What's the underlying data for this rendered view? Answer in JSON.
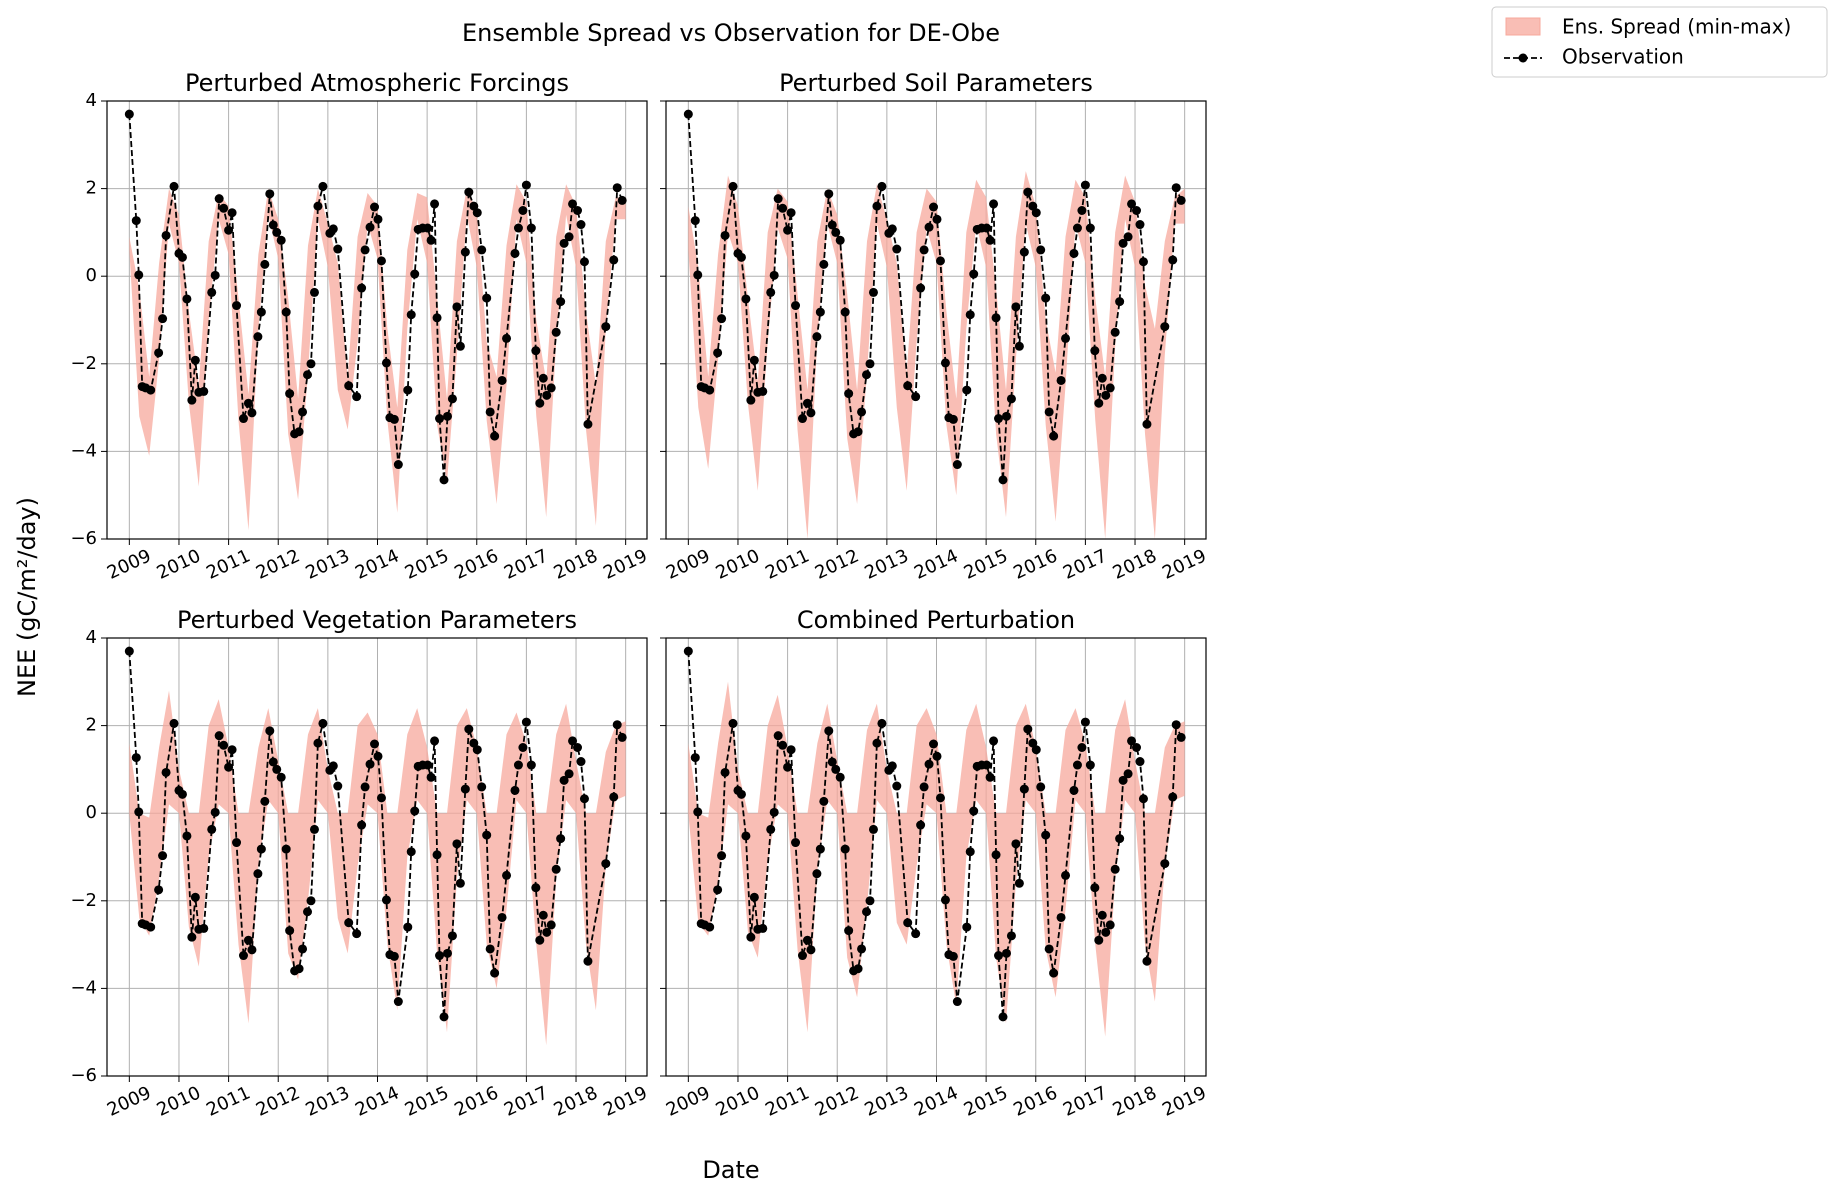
{
  "chart_data": {
    "type": "bandline",
    "title": "Ensemble Spread vs Observation for DE-Obe",
    "xlabel": "Date",
    "ylabel": "NEE (gC/m²/day)",
    "xlim": [
      2008.55,
      2019.43
    ],
    "xticks": [
      2009,
      2010,
      2011,
      2012,
      2013,
      2014,
      2015,
      2016,
      2017,
      2018,
      2019
    ],
    "ylim": [
      -6,
      4
    ],
    "yticks": [
      {
        "value": -6,
        "label": "−6"
      },
      {
        "value": -4,
        "label": "−4"
      },
      {
        "value": -2,
        "label": "−2"
      },
      0,
      2,
      4
    ],
    "grid": true,
    "spread": {
      "name": "Ens. Spread (min-max)",
      "color": "#f7a89c"
    },
    "observation": {
      "name": "Observation",
      "color": "#000000",
      "values": [
        3.7,
        1.27,
        0.03,
        -2.52,
        -2.55,
        -2.6,
        -1.75,
        -0.97,
        0.93,
        2.05,
        0.52,
        0.43,
        -0.52,
        -2.83,
        -1.92,
        -2.65,
        -2.63,
        -0.37,
        0.02,
        1.77,
        1.55,
        1.05,
        1.45,
        -0.67,
        -3.25,
        -2.9,
        -3.12,
        -1.38,
        -0.82,
        0.27,
        1.88,
        1.17,
        1.0,
        0.82,
        -0.82,
        -2.68,
        -3.6,
        -3.55,
        -3.1,
        -2.25,
        -2.0,
        -0.37,
        1.6,
        2.05,
        0.98,
        1.08,
        0.62,
        -2.5,
        -2.75,
        -0.27,
        0.6,
        1.12,
        1.58,
        1.3,
        0.35,
        -1.98,
        -3.23,
        -3.27,
        -4.3,
        -2.6,
        -0.88,
        0.05,
        1.07,
        1.1,
        1.1,
        0.82,
        1.65,
        -0.95,
        -3.25,
        -4.65,
        -3.2,
        -2.8,
        -0.7,
        -1.6,
        0.55,
        1.92,
        1.6,
        1.45,
        0.6,
        -0.5,
        -3.1,
        -3.65,
        -2.38,
        -1.42,
        0.52,
        1.1,
        1.5,
        2.08,
        1.1,
        -1.7,
        -2.9,
        -2.33,
        -2.72,
        -2.55,
        -1.28,
        -0.58,
        0.75,
        0.9,
        1.65,
        1.5,
        1.18,
        0.33,
        -3.38,
        -1.15,
        0.37,
        2.02,
        1.73
      ]
    },
    "x": [
      2009.0,
      2009.14,
      2009.19,
      2009.26,
      2009.33,
      2009.43,
      2009.59,
      2009.67,
      2009.74,
      2009.9,
      2010.0,
      2010.07,
      2010.16,
      2010.26,
      2010.33,
      2010.4,
      2010.5,
      2010.66,
      2010.73,
      2010.81,
      2010.9,
      2011.0,
      2011.07,
      2011.16,
      2011.3,
      2011.4,
      2011.47,
      2011.59,
      2011.66,
      2011.73,
      2011.83,
      2011.9,
      2011.97,
      2012.06,
      2012.16,
      2012.23,
      2012.33,
      2012.42,
      2012.49,
      2012.59,
      2012.66,
      2012.73,
      2012.8,
      2012.9,
      2013.04,
      2013.11,
      2013.2,
      2013.42,
      2013.58,
      2013.68,
      2013.75,
      2013.85,
      2013.94,
      2014.01,
      2014.08,
      2014.18,
      2014.25,
      2014.34,
      2014.42,
      2014.61,
      2014.68,
      2014.75,
      2014.82,
      2014.91,
      2015.01,
      2015.08,
      2015.15,
      2015.2,
      2015.25,
      2015.34,
      2015.41,
      2015.51,
      2015.6,
      2015.67,
      2015.77,
      2015.84,
      2015.94,
      2016.01,
      2016.1,
      2016.2,
      2016.27,
      2016.36,
      2016.51,
      2016.6,
      2016.77,
      2016.84,
      2016.93,
      2017.0,
      2017.1,
      2017.19,
      2017.27,
      2017.34,
      2017.41,
      2017.5,
      2017.6,
      2017.69,
      2017.76,
      2017.86,
      2017.93,
      2018.03,
      2018.1,
      2018.17,
      2018.24,
      2018.6,
      2018.76,
      2018.83,
      2018.93
    ],
    "band_x": [
      2009.0,
      2009.2,
      2009.4,
      2009.6,
      2009.8,
      2010.0,
      2010.2,
      2010.4,
      2010.6,
      2010.8,
      2011.0,
      2011.2,
      2011.4,
      2011.6,
      2011.8,
      2012.0,
      2012.2,
      2012.4,
      2012.6,
      2012.8,
      2013.0,
      2013.2,
      2013.4,
      2013.6,
      2013.8,
      2014.0,
      2014.2,
      2014.4,
      2014.6,
      2014.8,
      2015.0,
      2015.2,
      2015.4,
      2015.6,
      2015.8,
      2016.0,
      2016.2,
      2016.4,
      2016.6,
      2016.8,
      2017.0,
      2017.2,
      2017.4,
      2017.6,
      2017.8,
      2018.0,
      2018.2,
      2018.4,
      2018.6,
      2018.8,
      2019.0
    ],
    "panels": [
      {
        "title": "Perturbed Atmospheric Forcings",
        "min": [
          0.6,
          -3.2,
          -4.1,
          -1.9,
          1.2,
          0.3,
          -2.9,
          -4.8,
          -1.0,
          1.3,
          0.5,
          -3.3,
          -5.8,
          -1.2,
          1.4,
          0.4,
          -3.6,
          -5.1,
          -2.2,
          1.3,
          0.2,
          -2.6,
          -3.5,
          -1.5,
          1.2,
          0.4,
          -3.3,
          -5.4,
          -1.2,
          1.3,
          0.3,
          -3.4,
          -4.7,
          -1.8,
          1.4,
          0.2,
          -3.3,
          -5.2,
          -2.5,
          1.3,
          0.3,
          -3.2,
          -5.5,
          -1.5,
          1.4,
          0.2,
          -3.5,
          -5.7,
          -1.2,
          1.3,
          1.3
        ],
        "max": [
          0.9,
          -0.3,
          -2.3,
          0.3,
          2.0,
          1.4,
          -0.8,
          -2.5,
          0.8,
          1.9,
          1.6,
          -0.5,
          -2.7,
          0.5,
          2.0,
          1.3,
          -0.5,
          -2.8,
          0.7,
          2.0,
          1.2,
          0.3,
          -2.3,
          0.9,
          1.9,
          1.6,
          -1.2,
          -3.0,
          0.6,
          1.9,
          1.8,
          -0.5,
          -2.8,
          0.8,
          2.0,
          1.5,
          -1.5,
          -2.3,
          0.7,
          2.1,
          1.7,
          -1.0,
          -2.4,
          0.9,
          2.1,
          1.6,
          -0.8,
          -2.5,
          0.8,
          1.8,
          1.8
        ]
      },
      {
        "title": "Perturbed Soil Parameters",
        "min": [
          0.6,
          -3.0,
          -4.4,
          -1.9,
          1.0,
          0.3,
          -2.9,
          -4.9,
          -1.5,
          1.1,
          0.4,
          -3.5,
          -6.0,
          -1.4,
          1.2,
          0.3,
          -3.7,
          -5.2,
          -2.2,
          1.2,
          0.2,
          -3.0,
          -4.9,
          -1.5,
          1.1,
          0.3,
          -3.4,
          -5.0,
          -1.2,
          1.2,
          0.2,
          -3.6,
          -5.5,
          -1.9,
          1.2,
          0.2,
          -3.4,
          -5.6,
          -2.5,
          1.2,
          0.3,
          -3.3,
          -6.0,
          -1.6,
          1.3,
          0.2,
          -3.6,
          -6.0,
          -1.8,
          1.2,
          1.2
        ],
        "max": [
          1.6,
          0.2,
          -2.3,
          0.5,
          2.3,
          1.6,
          -0.5,
          -2.4,
          1.0,
          2.0,
          1.7,
          -0.4,
          -2.6,
          0.8,
          2.0,
          1.4,
          -0.4,
          -2.6,
          0.8,
          2.1,
          1.3,
          0.3,
          -2.2,
          1.0,
          2.0,
          1.7,
          -0.8,
          -2.8,
          1.0,
          2.2,
          1.8,
          -0.3,
          -2.6,
          0.9,
          2.4,
          1.6,
          -1.0,
          -2.2,
          0.9,
          2.2,
          1.8,
          -0.5,
          -2.3,
          1.0,
          2.3,
          1.7,
          -0.2,
          -1.2,
          0.8,
          1.8,
          2.0
        ]
      },
      {
        "title": "Perturbed Vegetation Parameters",
        "min": [
          0.0,
          -2.4,
          -2.8,
          -1.5,
          0.2,
          0.0,
          -2.6,
          -3.5,
          -1.0,
          0.2,
          0.0,
          -3.0,
          -4.8,
          -1.2,
          0.3,
          0.0,
          -3.2,
          -3.8,
          -2.0,
          0.3,
          0.0,
          -2.4,
          -3.2,
          -1.2,
          0.2,
          0.0,
          -3.0,
          -4.5,
          -1.0,
          0.3,
          0.0,
          -3.2,
          -5.0,
          -1.5,
          0.3,
          0.0,
          -3.0,
          -4.0,
          -2.2,
          0.3,
          0.0,
          -3.0,
          -5.3,
          -1.5,
          0.3,
          0.0,
          -3.0,
          -4.5,
          -1.2,
          0.3,
          0.4
        ],
        "max": [
          1.6,
          0.0,
          -0.1,
          1.5,
          2.8,
          1.0,
          0.0,
          0.0,
          2.0,
          2.6,
          1.5,
          0.0,
          0.0,
          1.5,
          2.4,
          1.2,
          0.0,
          0.0,
          1.8,
          2.4,
          1.0,
          0.0,
          0.0,
          2.0,
          2.3,
          1.8,
          0.0,
          0.0,
          1.8,
          2.4,
          1.5,
          0.0,
          0.0,
          2.0,
          2.4,
          1.5,
          0.0,
          0.0,
          1.8,
          2.3,
          1.6,
          0.0,
          0.0,
          1.8,
          2.5,
          1.2,
          0.0,
          0.0,
          1.4,
          2.0,
          2.1
        ]
      },
      {
        "title": "Combined Perturbation",
        "min": [
          0.0,
          -2.5,
          -2.8,
          -1.6,
          0.2,
          0.0,
          -2.7,
          -3.3,
          -1.1,
          0.2,
          0.0,
          -3.1,
          -5.0,
          -1.3,
          0.3,
          0.0,
          -3.3,
          -4.2,
          -2.1,
          0.3,
          0.0,
          -2.5,
          -3.0,
          -1.2,
          0.2,
          0.0,
          -3.0,
          -4.4,
          -1.0,
          0.3,
          0.0,
          -3.3,
          -4.8,
          -1.6,
          0.3,
          0.0,
          -3.1,
          -4.2,
          -2.2,
          0.3,
          0.0,
          -3.0,
          -5.1,
          -1.5,
          0.3,
          0.0,
          -3.0,
          -4.3,
          -1.2,
          0.3,
          0.4
        ],
        "max": [
          1.6,
          0.0,
          -0.1,
          1.6,
          3.0,
          1.0,
          0.0,
          0.0,
          2.0,
          2.7,
          1.5,
          0.0,
          0.0,
          1.6,
          2.5,
          1.2,
          0.0,
          0.0,
          1.9,
          2.5,
          1.0,
          0.0,
          0.0,
          2.0,
          2.4,
          1.8,
          0.0,
          0.0,
          1.9,
          2.5,
          1.5,
          0.0,
          0.0,
          2.0,
          2.5,
          1.5,
          0.0,
          0.0,
          1.9,
          2.4,
          1.6,
          0.0,
          0.0,
          1.9,
          2.6,
          1.2,
          0.0,
          0.0,
          1.5,
          2.0,
          2.1
        ]
      }
    ]
  }
}
